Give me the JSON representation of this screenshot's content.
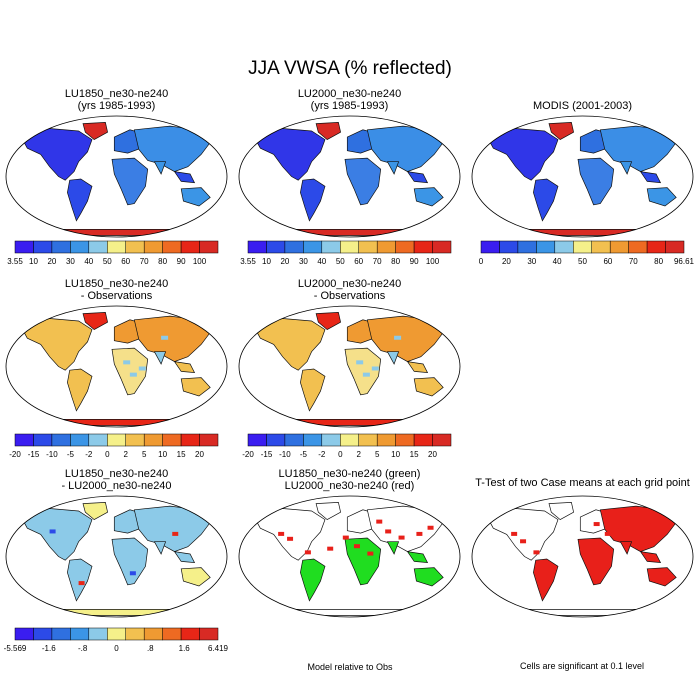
{
  "figure": {
    "title": "JJA VWSA (% reflected)"
  },
  "panels": [
    {
      "id": "p1",
      "title": [
        "LU1850_ne30-ne240",
        "(yrs 1985-1993)"
      ],
      "style": "abs"
    },
    {
      "id": "p2",
      "title": [
        "LU2000_ne30-ne240",
        "(yrs 1985-1993)"
      ],
      "style": "abs"
    },
    {
      "id": "p3",
      "title": [
        "MODIS (2001-2003)"
      ],
      "style": "abs"
    },
    {
      "id": "p4",
      "title": [
        "LU1850_ne30-ne240",
        "- Observations"
      ],
      "style": "diff"
    },
    {
      "id": "p5",
      "title": [
        "LU2000_ne30-ne240",
        "- Observations"
      ],
      "style": "diff"
    },
    {
      "id": "p7",
      "title": [
        "LU1850_ne30-ne240",
        "- LU2000_ne30-ne240"
      ],
      "style": "casediff"
    },
    {
      "id": "p8",
      "title": [
        "LU1850_ne30-ne240 (green)",
        "LU2000_ne30-ne240 (red)"
      ],
      "style": "relobs"
    },
    {
      "id": "p9",
      "title": [
        "T-Test of two Case means at each grid point"
      ],
      "style": "ttest"
    }
  ],
  "colorbars": {
    "abs1": {
      "colors": [
        "#3a1df0",
        "#2c4ae8",
        "#2f70e0",
        "#3b95e6",
        "#8ccae8",
        "#f5f08a",
        "#f2c050",
        "#ef9a32",
        "#ee6a22",
        "#e72617",
        "#d82a24"
      ],
      "labels": [
        "3.55",
        "10",
        "20",
        "30",
        "40",
        "50",
        "60",
        "70",
        "80",
        "90",
        "100"
      ]
    },
    "abs2": {
      "colors": [
        "#3a1df0",
        "#2c4ae8",
        "#2f70e0",
        "#3b95e6",
        "#8ccae8",
        "#f5f08a",
        "#f2c050",
        "#ef9a32",
        "#ee6a22",
        "#e72617",
        "#d82a24"
      ],
      "labels": [
        "3.55",
        "10",
        "20",
        "30",
        "40",
        "50",
        "60",
        "70",
        "80",
        "90",
        "100"
      ]
    },
    "abs3": {
      "colors": [
        "#3a1df0",
        "#2c4ae8",
        "#2f70e0",
        "#3b95e6",
        "#8ccae8",
        "#f5f08a",
        "#f2c050",
        "#ef9a32",
        "#ee6a22",
        "#e72617",
        "#d82a24"
      ],
      "labels": [
        "0",
        "20",
        "30",
        "40",
        "50",
        "60",
        "70",
        "80",
        "96.61"
      ]
    },
    "diff1": {
      "colors": [
        "#3a1df0",
        "#2c4ae8",
        "#2f70e0",
        "#3b95e6",
        "#8ccae8",
        "#f5f08a",
        "#f2c050",
        "#ef9a32",
        "#ee6a22",
        "#e72617",
        "#d82a24"
      ],
      "labels": [
        "-20",
        "-15",
        "-10",
        "-5",
        "-2",
        "0",
        "2",
        "5",
        "10",
        "15",
        "20"
      ]
    },
    "diff2": {
      "colors": [
        "#3a1df0",
        "#2c4ae8",
        "#2f70e0",
        "#3b95e6",
        "#8ccae8",
        "#f5f08a",
        "#f2c050",
        "#ef9a32",
        "#ee6a22",
        "#e72617",
        "#d82a24"
      ],
      "labels": [
        "-20",
        "-15",
        "-10",
        "-5",
        "-2",
        "0",
        "2",
        "5",
        "10",
        "15",
        "20"
      ]
    },
    "case": {
      "colors": [
        "#3a1df0",
        "#2c4ae8",
        "#2f70e0",
        "#3b95e6",
        "#8ccae8",
        "#f5f08a",
        "#f2c050",
        "#ef9a32",
        "#ee6a22",
        "#e72617",
        "#d82a24"
      ],
      "labels": [
        "-5.569",
        "-1.6",
        "-.8",
        "0",
        ".8",
        "1.6",
        "6.419"
      ]
    }
  },
  "notes": {
    "relobs": "Model relative to Obs",
    "ttest": "Cells are significant at 0.1 level"
  }
}
